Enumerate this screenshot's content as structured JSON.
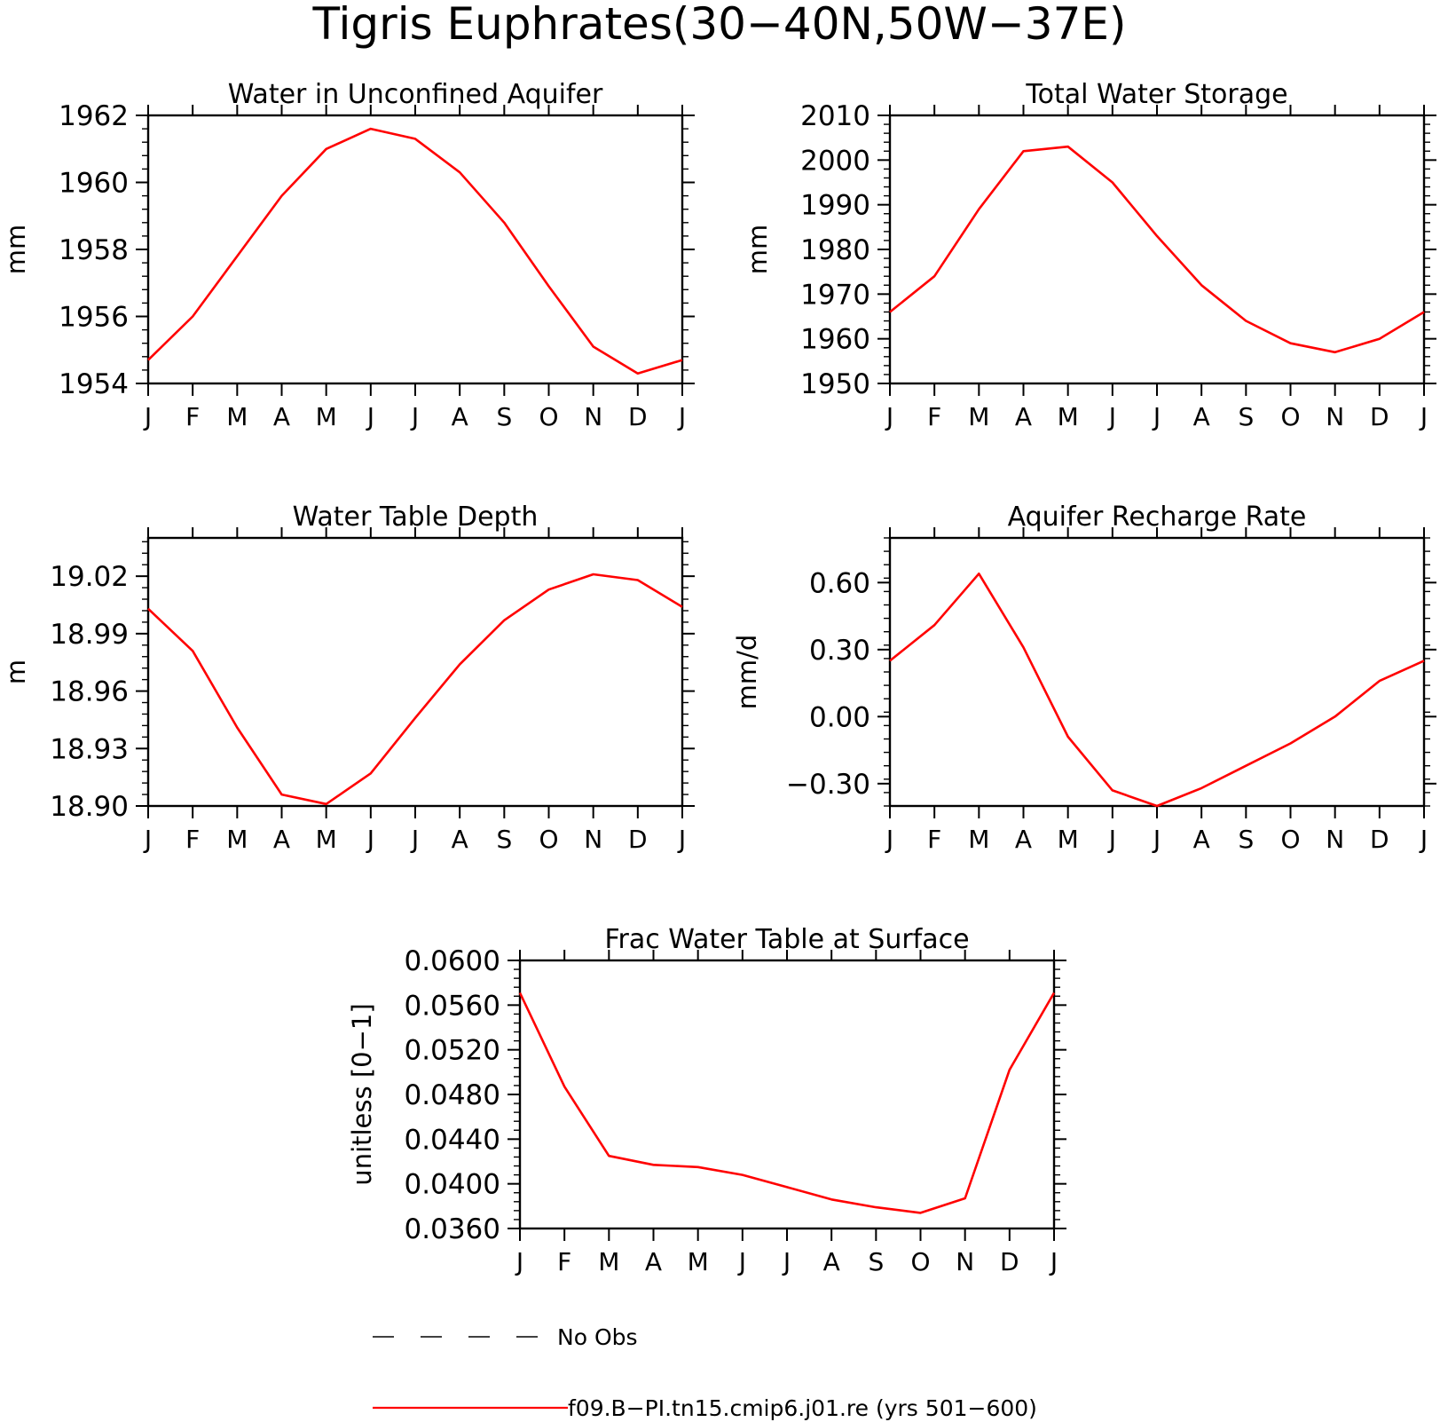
{
  "figure": {
    "title": "Tigris Euphrates(30−40N,50W−37E)",
    "series_color": "#ff0000",
    "axis_color": "#000000"
  },
  "legend": {
    "entries": [
      {
        "label": "No Obs",
        "style": "dashed",
        "color": "#000000"
      },
      {
        "label": "f09.B−PI.tn15.cmip6.j01.re (yrs 501−600)",
        "style": "solid",
        "color": "#ff0000"
      }
    ]
  },
  "chart_data": [
    {
      "type": "line",
      "title": "Water in Unconfined Aquifer",
      "ylabel": "mm",
      "categories": [
        "J",
        "F",
        "M",
        "A",
        "M",
        "J",
        "J",
        "A",
        "S",
        "O",
        "N",
        "D",
        "J"
      ],
      "ylim": [
        1954,
        1962
      ],
      "yticks": [
        "1954",
        "1956",
        "1958",
        "1960",
        "1962"
      ],
      "series": [
        {
          "values": [
            1954.7,
            1956.0,
            1957.8,
            1959.6,
            1961.0,
            1961.6,
            1961.3,
            1960.3,
            1958.8,
            1956.9,
            1955.1,
            1954.3,
            1954.7
          ]
        }
      ]
    },
    {
      "type": "line",
      "title": "Total Water Storage",
      "ylabel": "mm",
      "categories": [
        "J",
        "F",
        "M",
        "A",
        "M",
        "J",
        "J",
        "A",
        "S",
        "O",
        "N",
        "D",
        "J"
      ],
      "ylim": [
        1950,
        2010
      ],
      "yticks": [
        "1950",
        "1960",
        "1970",
        "1980",
        "1990",
        "2000",
        "2010"
      ],
      "series": [
        {
          "values": [
            1966,
            1974,
            1989,
            2002,
            2003,
            1995,
            1983,
            1972,
            1964,
            1959,
            1957,
            1960,
            1966
          ]
        }
      ]
    },
    {
      "type": "line",
      "title": "Water Table Depth",
      "ylabel": "m",
      "categories": [
        "J",
        "F",
        "M",
        "A",
        "M",
        "J",
        "J",
        "A",
        "S",
        "O",
        "N",
        "D",
        "J"
      ],
      "ylim": [
        18.9,
        19.04
      ],
      "yticks": [
        "18.90",
        "18.93",
        "18.96",
        "18.99",
        "19.02"
      ],
      "series": [
        {
          "values": [
            19.003,
            18.981,
            18.941,
            18.906,
            18.901,
            18.917,
            18.946,
            18.974,
            18.997,
            19.013,
            19.021,
            19.018,
            19.004
          ]
        }
      ]
    },
    {
      "type": "line",
      "title": "Aquifer Recharge Rate",
      "ylabel": "mm/d",
      "categories": [
        "J",
        "F",
        "M",
        "A",
        "M",
        "J",
        "J",
        "A",
        "S",
        "O",
        "N",
        "D",
        "J"
      ],
      "ylim": [
        -0.4,
        0.8
      ],
      "yticks": [
        "−0.30",
        "0.00",
        "0.30",
        "0.60"
      ],
      "series": [
        {
          "values": [
            0.25,
            0.41,
            0.64,
            0.31,
            -0.09,
            -0.33,
            -0.4,
            -0.32,
            -0.22,
            -0.12,
            0.0,
            0.16,
            0.25
          ]
        }
      ]
    },
    {
      "type": "line",
      "title": "Frac Water Table at Surface",
      "ylabel": "unitless [0−1]",
      "categories": [
        "J",
        "F",
        "M",
        "A",
        "M",
        "J",
        "J",
        "A",
        "S",
        "O",
        "N",
        "D",
        "J"
      ],
      "ylim": [
        0.036,
        0.06
      ],
      "yticks": [
        "0.0360",
        "0.0400",
        "0.0440",
        "0.0480",
        "0.0520",
        "0.0560",
        "0.0600"
      ],
      "series": [
        {
          "values": [
            0.0571,
            0.0487,
            0.0425,
            0.0417,
            0.0415,
            0.0408,
            0.0397,
            0.0386,
            0.0379,
            0.0374,
            0.0387,
            0.0502,
            0.0571
          ]
        }
      ]
    }
  ]
}
